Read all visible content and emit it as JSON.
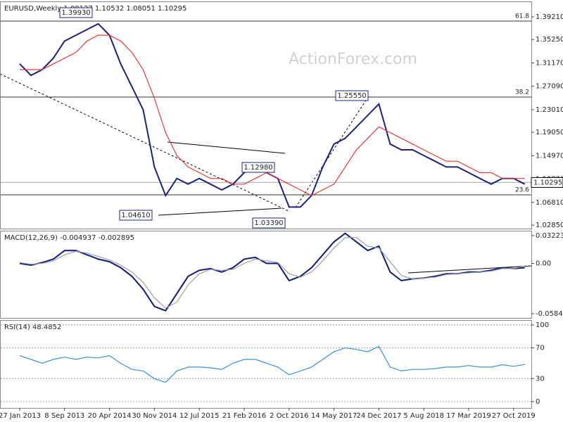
{
  "chart_data": [
    {
      "type": "line",
      "title": "EURUSD,Weekly  1.08127 1.10532 1.08051 1.10295",
      "watermark": "ActionForex.com",
      "ylim": [
        1.0224,
        1.4191
      ],
      "yticks": [
        {
          "value": 1.3921,
          "label": "1.39210"
        },
        {
          "value": 1.3525,
          "label": "1.35250"
        },
        {
          "value": 1.3117,
          "label": "1.31170"
        },
        {
          "value": 1.2709,
          "label": "1.27090"
        },
        {
          "value": 1.2301,
          "label": "1.23010"
        },
        {
          "value": 1.1905,
          "label": "1.19050"
        },
        {
          "value": 1.1497,
          "label": "1.14970"
        },
        {
          "value": 1.1089,
          "label": "1.10890"
        },
        {
          "value": 1.0681,
          "label": "1.06810"
        },
        {
          "value": 1.0285,
          "label": "1.02850"
        }
      ],
      "series": [
        {
          "name": "EURUSD",
          "color": "#1a237e",
          "values": [
            1.31,
            1.29,
            1.3,
            1.32,
            1.35,
            1.36,
            1.37,
            1.38,
            1.36,
            1.31,
            1.27,
            1.23,
            1.13,
            1.08,
            1.11,
            1.1,
            1.11,
            1.1,
            1.09,
            1.1,
            1.12,
            1.13,
            1.12,
            1.11,
            1.06,
            1.06,
            1.08,
            1.13,
            1.17,
            1.18,
            1.2,
            1.22,
            1.24,
            1.17,
            1.16,
            1.16,
            1.15,
            1.14,
            1.13,
            1.13,
            1.12,
            1.11,
            1.1,
            1.11,
            1.11,
            1.1
          ]
        },
        {
          "name": "MA",
          "color": "#e53935",
          "values": [
            1.3,
            1.3,
            1.3,
            1.31,
            1.32,
            1.33,
            1.35,
            1.36,
            1.36,
            1.35,
            1.33,
            1.3,
            1.25,
            1.19,
            1.15,
            1.13,
            1.12,
            1.11,
            1.11,
            1.1,
            1.1,
            1.11,
            1.12,
            1.11,
            1.1,
            1.09,
            1.08,
            1.09,
            1.1,
            1.13,
            1.16,
            1.18,
            1.2,
            1.19,
            1.18,
            1.17,
            1.16,
            1.15,
            1.14,
            1.14,
            1.13,
            1.12,
            1.12,
            1.11,
            1.11,
            1.11
          ]
        }
      ],
      "fib_levels": [
        {
          "ratio": 61.8,
          "price": 1.3847
        },
        {
          "ratio": 38.2,
          "price": 1.2521
        },
        {
          "ratio": 23.6,
          "price": 1.0813
        }
      ],
      "last": {
        "value": 1.10295,
        "label": "1.10295"
      },
      "annotations": [
        "1.39930",
        "1.25550",
        "1.12980",
        "1.04610",
        "1.03390"
      ]
    },
    {
      "type": "line",
      "title": "MACD(12,26,9) -0.004937 -0.002895",
      "ylim": [
        -0.0633,
        0.038
      ],
      "yticks": [
        0.032235,
        {
          "value": 0,
          "label": "0.00"
        },
        -0.058434
      ],
      "series": [
        {
          "name": "MACD",
          "color": "#0d1b7a",
          "values": [
            0,
            -0.002,
            0.001,
            0.005,
            0.015,
            0.015,
            0.01,
            0.005,
            0.002,
            -0.005,
            -0.015,
            -0.03,
            -0.05,
            -0.055,
            -0.035,
            -0.015,
            -0.008,
            -0.006,
            -0.01,
            -0.005,
            0.005,
            0.007,
            0,
            0,
            -0.02,
            -0.015,
            -0.005,
            0.01,
            0.025,
            0.035,
            0.025,
            0.015,
            0.02,
            -0.01,
            -0.02,
            -0.018,
            -0.017,
            -0.015,
            -0.012,
            -0.012,
            -0.01,
            -0.01,
            -0.008,
            -0.005,
            -0.006,
            -0.004937
          ]
        },
        {
          "name": "Signal",
          "color": "#9e9e9e",
          "values": [
            0.001,
            -0.001,
            0,
            0.003,
            0.01,
            0.014,
            0.012,
            0.008,
            0.004,
            -0.002,
            -0.01,
            -0.022,
            -0.04,
            -0.052,
            -0.045,
            -0.025,
            -0.012,
            -0.007,
            -0.008,
            -0.007,
            0,
            0.005,
            0.003,
            0.001,
            -0.012,
            -0.016,
            -0.01,
            0.003,
            0.018,
            0.03,
            0.03,
            0.02,
            0.018,
            0.002,
            -0.014,
            -0.018,
            -0.017,
            -0.016,
            -0.013,
            -0.012,
            -0.011,
            -0.01,
            -0.009,
            -0.006,
            -0.006,
            -0.002895
          ]
        }
      ]
    },
    {
      "type": "line",
      "title": "RSI(14) 48.4852",
      "ylim": [
        -8.3,
        106.4
      ],
      "yticks": [
        100,
        70,
        30,
        0
      ],
      "grid": true,
      "categories": [
        "27 Jan 2013",
        null,
        null,
        null,
        "8 Sep 2013",
        null,
        null,
        null,
        "20 Apr 2014",
        null,
        null,
        null,
        "30 Nov 2014",
        null,
        null,
        null,
        "12 Jul 2015",
        null,
        null,
        null,
        "21 Feb 2016",
        null,
        null,
        null,
        "2 Oct 2016",
        null,
        null,
        null,
        "14 May 2017",
        null,
        null,
        null,
        "24 Dec 2017",
        null,
        null,
        null,
        "5 Aug 2018",
        null,
        null,
        null,
        "17 Mar 2019",
        null,
        null,
        null,
        "27 Oct 2019",
        null
      ],
      "series": [
        {
          "name": "RSI",
          "color": "#3a8fd8",
          "values": [
            60,
            55,
            50,
            55,
            58,
            55,
            58,
            57,
            60,
            50,
            42,
            40,
            30,
            25,
            40,
            45,
            45,
            44,
            42,
            50,
            55,
            55,
            50,
            45,
            35,
            40,
            45,
            55,
            65,
            70,
            68,
            65,
            72,
            45,
            40,
            42,
            42,
            43,
            45,
            45,
            47,
            45,
            45,
            48,
            46,
            48.4852
          ]
        }
      ]
    }
  ]
}
